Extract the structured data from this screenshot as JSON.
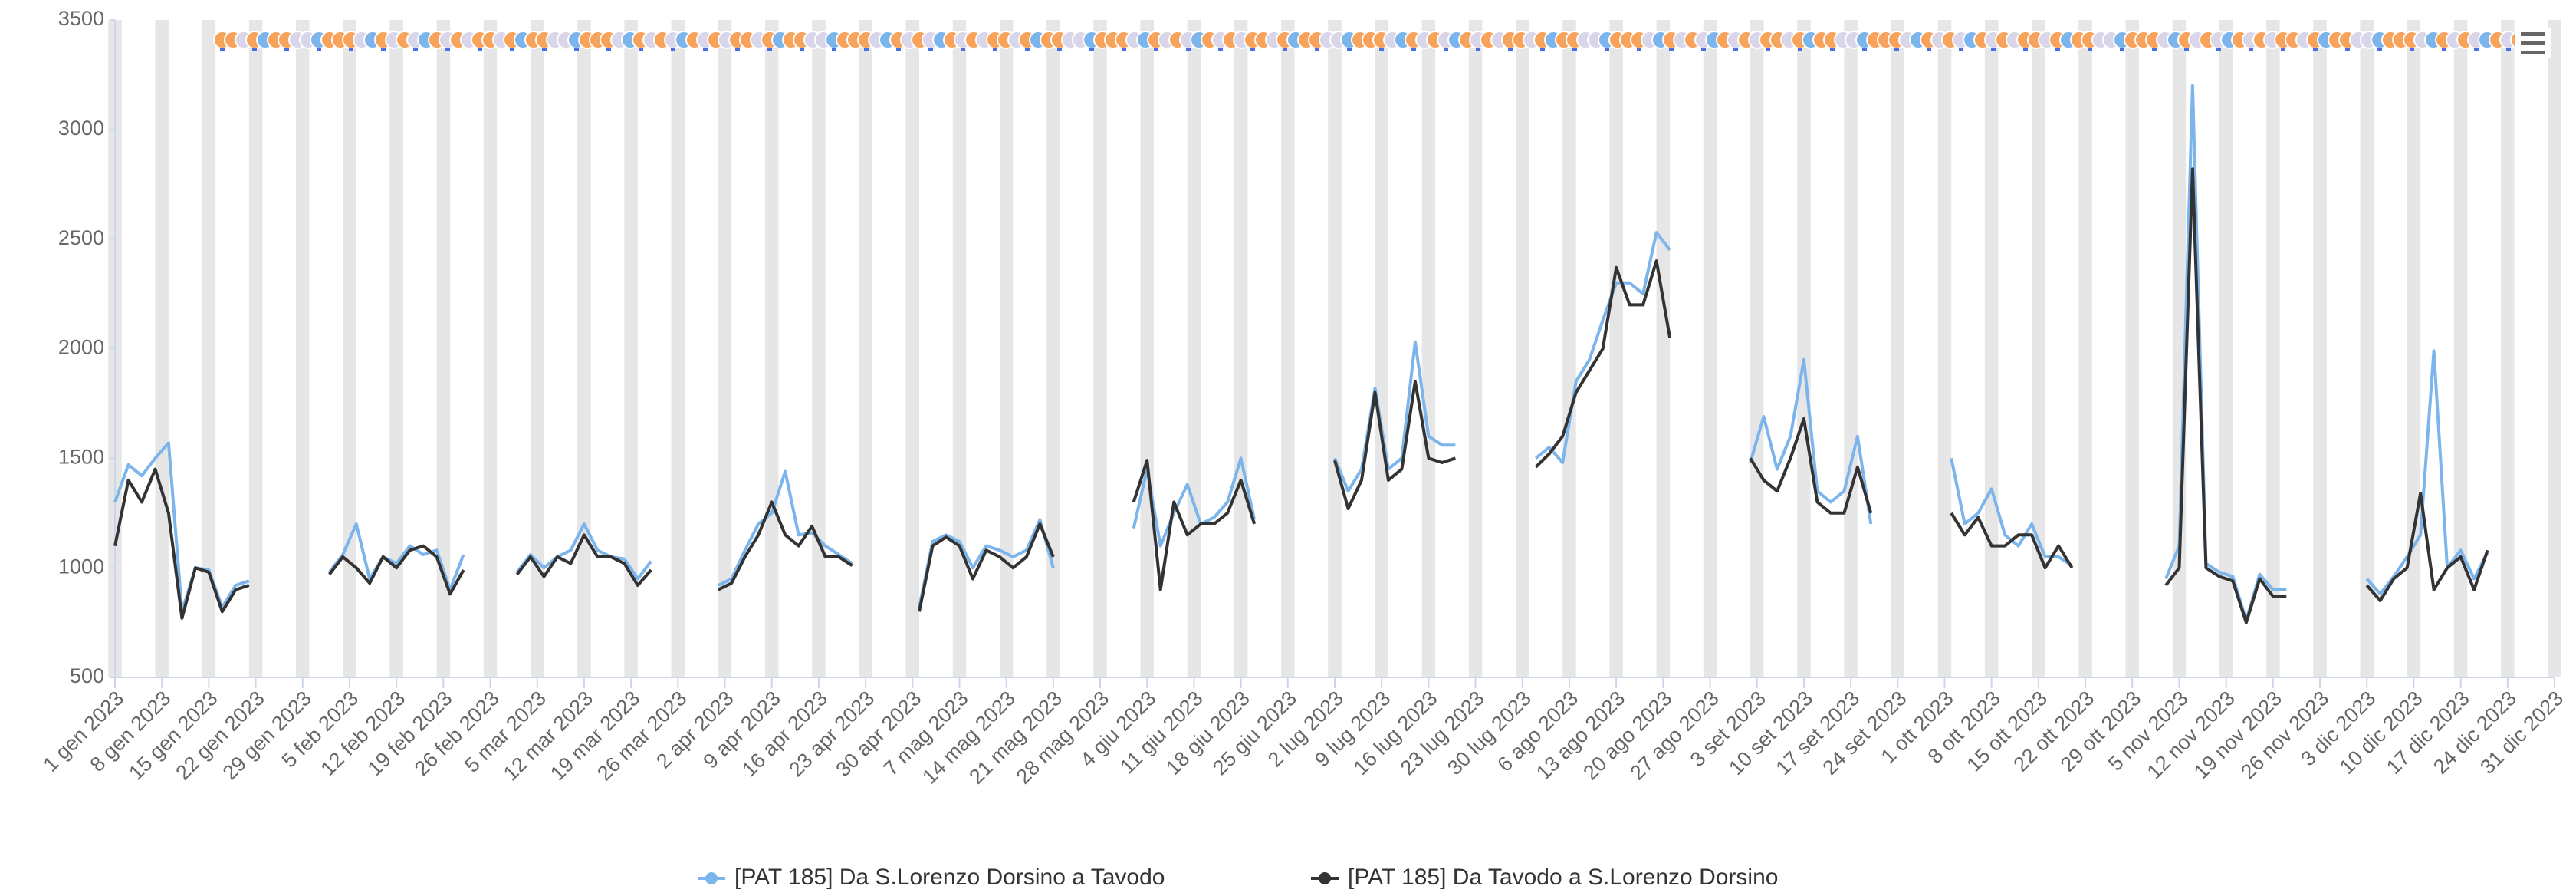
{
  "chart_data": {
    "type": "line",
    "xlim": [
      0,
      364
    ],
    "xticks": [
      {
        "value": 0,
        "label": "1 gen 2023"
      },
      {
        "value": 7,
        "label": "8 gen 2023"
      },
      {
        "value": 14,
        "label": "15 gen 2023"
      },
      {
        "value": 21,
        "label": "22 gen 2023"
      },
      {
        "value": 28,
        "label": "29 gen 2023"
      },
      {
        "value": 35,
        "label": "5 feb 2023"
      },
      {
        "value": 42,
        "label": "12 feb 2023"
      },
      {
        "value": 49,
        "label": "19 feb 2023"
      },
      {
        "value": 56,
        "label": "26 feb 2023"
      },
      {
        "value": 63,
        "label": "5 mar 2023"
      },
      {
        "value": 70,
        "label": "12 mar 2023"
      },
      {
        "value": 77,
        "label": "19 mar 2023"
      },
      {
        "value": 84,
        "label": "26 mar 2023"
      },
      {
        "value": 91,
        "label": "2 apr 2023"
      },
      {
        "value": 98,
        "label": "9 apr 2023"
      },
      {
        "value": 105,
        "label": "16 apr 2023"
      },
      {
        "value": 112,
        "label": "23 apr 2023"
      },
      {
        "value": 119,
        "label": "30 apr 2023"
      },
      {
        "value": 126,
        "label": "7 mag 2023"
      },
      {
        "value": 133,
        "label": "14 mag 2023"
      },
      {
        "value": 140,
        "label": "21 mag 2023"
      },
      {
        "value": 147,
        "label": "28 mag 2023"
      },
      {
        "value": 154,
        "label": "4 giu 2023"
      },
      {
        "value": 161,
        "label": "11 giu 2023"
      },
      {
        "value": 168,
        "label": "18 giu 2023"
      },
      {
        "value": 175,
        "label": "25 giu 2023"
      },
      {
        "value": 182,
        "label": "2 lug 2023"
      },
      {
        "value": 189,
        "label": "9 lug 2023"
      },
      {
        "value": 196,
        "label": "16 lug 2023"
      },
      {
        "value": 203,
        "label": "23 lug 2023"
      },
      {
        "value": 210,
        "label": "30 lug 2023"
      },
      {
        "value": 217,
        "label": "6 ago 2023"
      },
      {
        "value": 224,
        "label": "13 ago 2023"
      },
      {
        "value": 231,
        "label": "20 ago 2023"
      },
      {
        "value": 238,
        "label": "27 ago 2023"
      },
      {
        "value": 245,
        "label": "3 set 2023"
      },
      {
        "value": 252,
        "label": "10 set 2023"
      },
      {
        "value": 259,
        "label": "17 set 2023"
      },
      {
        "value": 266,
        "label": "24 set 2023"
      },
      {
        "value": 273,
        "label": "1 ott 2023"
      },
      {
        "value": 280,
        "label": "8 ott 2023"
      },
      {
        "value": 287,
        "label": "15 ott 2023"
      },
      {
        "value": 294,
        "label": "22 ott 2023"
      },
      {
        "value": 301,
        "label": "29 ott 2023"
      },
      {
        "value": 308,
        "label": "5 nov 2023"
      },
      {
        "value": 315,
        "label": "12 nov 2023"
      },
      {
        "value": 322,
        "label": "19 nov 2023"
      },
      {
        "value": 329,
        "label": "26 nov 2023"
      },
      {
        "value": 336,
        "label": "3 dic 2023"
      },
      {
        "value": 343,
        "label": "10 dic 2023"
      },
      {
        "value": 350,
        "label": "17 dic 2023"
      },
      {
        "value": 357,
        "label": "24 dic 2023"
      },
      {
        "value": 364,
        "label": "31 dic 2023"
      }
    ],
    "ylim": [
      500,
      3500
    ],
    "yticks": [
      500,
      1000,
      1500,
      2000,
      2500,
      3000,
      3500
    ],
    "grid": false,
    "legend": "bottom",
    "x": [
      0,
      2,
      4,
      6,
      8,
      10,
      12,
      14,
      16,
      18,
      20,
      22,
      24,
      26,
      28,
      30,
      32,
      34,
      36,
      38,
      40,
      42,
      44,
      46,
      48,
      50,
      52,
      54,
      56,
      58,
      60,
      62,
      64,
      66,
      68,
      70,
      72,
      74,
      76,
      78,
      80,
      82,
      84,
      86,
      88,
      90,
      92,
      94,
      96,
      98,
      100,
      102,
      104,
      106,
      108,
      110,
      112,
      114,
      116,
      118,
      120,
      122,
      124,
      126,
      128,
      130,
      132,
      134,
      136,
      138,
      140,
      142,
      144,
      146,
      148,
      150,
      152,
      154,
      156,
      158,
      160,
      162,
      164,
      166,
      168,
      170,
      172,
      174,
      176,
      178,
      180,
      182,
      184,
      186,
      188,
      190,
      192,
      194,
      196,
      198,
      200,
      202,
      204,
      206,
      208,
      210,
      212,
      214,
      216,
      218,
      220,
      222,
      224,
      226,
      228,
      230,
      232,
      234,
      236,
      238,
      240,
      242,
      244,
      246,
      248,
      250,
      252,
      254,
      256,
      258,
      260,
      262,
      264,
      266,
      268,
      270,
      272,
      274,
      276,
      278,
      280,
      282,
      284,
      286,
      288,
      290,
      292,
      294,
      296,
      298,
      300,
      302,
      304,
      306,
      308,
      310,
      312,
      314,
      316,
      318,
      320,
      322,
      324,
      326,
      328,
      330,
      332,
      334,
      336,
      338,
      340,
      342,
      344,
      346,
      348,
      350,
      352,
      354,
      356,
      358,
      360,
      362,
      364
    ],
    "series": [
      {
        "name": "[PAT 185] Da S.Lorenzo Dorsino a Tavodo",
        "color": "#7cb5ec",
        "values": [
          1300,
          1470,
          1420,
          1500,
          1570,
          800,
          1000,
          990,
          820,
          920,
          940,
          null,
          null,
          null,
          null,
          null,
          980,
          1060,
          1200,
          950,
          1050,
          1020,
          1100,
          1060,
          1080,
          900,
          1060,
          null,
          null,
          null,
          980,
          1060,
          1000,
          1050,
          1080,
          1200,
          1080,
          1050,
          1040,
          950,
          1030,
          null,
          null,
          null,
          null,
          920,
          950,
          1080,
          1200,
          1250,
          1440,
          1150,
          1160,
          1100,
          1060,
          1020,
          null,
          null,
          null,
          null,
          820,
          1120,
          1150,
          1120,
          1000,
          1100,
          1080,
          1050,
          1080,
          1220,
          1000,
          null,
          null,
          null,
          null,
          null,
          1180,
          1450,
          1100,
          1250,
          1380,
          1200,
          1230,
          1300,
          1500,
          1220,
          null,
          null,
          null,
          null,
          null,
          1500,
          1350,
          1450,
          1820,
          1450,
          1500,
          2030,
          1600,
          1560,
          1560,
          null,
          null,
          null,
          null,
          null,
          1500,
          1550,
          1480,
          1850,
          1950,
          2130,
          2300,
          2300,
          2250,
          2530,
          2450,
          null,
          null,
          null,
          null,
          null,
          1480,
          1690,
          1450,
          1600,
          1950,
          1350,
          1300,
          1350,
          1600,
          1200,
          null,
          null,
          null,
          null,
          null,
          1500,
          1200,
          1250,
          1360,
          1150,
          1100,
          1200,
          1050,
          1050,
          1010,
          null,
          null,
          null,
          null,
          null,
          null,
          950,
          1100,
          3200,
          1020,
          980,
          960,
          760,
          970,
          900,
          900,
          null,
          null,
          null,
          null,
          null,
          950,
          880,
          960,
          1050,
          1150,
          1990,
          1000,
          1080,
          950,
          1070,
          null,
          null,
          null,
          null,
          null
        ]
      },
      {
        "name": "[PAT 185] Da Tavodo a S.Lorenzo Dorsino",
        "color": "#333333",
        "values": [
          1100,
          1400,
          1300,
          1450,
          1250,
          770,
          1000,
          980,
          800,
          900,
          920,
          null,
          null,
          null,
          null,
          null,
          970,
          1050,
          1000,
          930,
          1050,
          1000,
          1080,
          1100,
          1050,
          880,
          990,
          null,
          null,
          null,
          970,
          1050,
          960,
          1050,
          1020,
          1150,
          1050,
          1050,
          1020,
          920,
          990,
          null,
          null,
          null,
          null,
          900,
          930,
          1050,
          1150,
          1300,
          1150,
          1100,
          1190,
          1050,
          1050,
          1010,
          null,
          null,
          null,
          null,
          800,
          1100,
          1140,
          1100,
          950,
          1080,
          1050,
          1000,
          1050,
          1200,
          1050,
          null,
          null,
          null,
          null,
          null,
          1300,
          1490,
          900,
          1300,
          1150,
          1200,
          1200,
          1250,
          1400,
          1200,
          null,
          null,
          null,
          null,
          null,
          1490,
          1270,
          1400,
          1800,
          1400,
          1450,
          1850,
          1500,
          1480,
          1500,
          null,
          null,
          null,
          null,
          null,
          1460,
          1520,
          1600,
          1800,
          1900,
          2000,
          2370,
          2200,
          2200,
          2400,
          2050,
          null,
          null,
          null,
          null,
          null,
          1500,
          1400,
          1350,
          1500,
          1680,
          1300,
          1250,
          1250,
          1460,
          1250,
          null,
          null,
          null,
          null,
          null,
          1250,
          1150,
          1230,
          1100,
          1100,
          1150,
          1150,
          1000,
          1100,
          1000,
          null,
          null,
          null,
          null,
          null,
          null,
          920,
          1000,
          2820,
          1000,
          960,
          940,
          750,
          950,
          870,
          870,
          null,
          null,
          null,
          null,
          null,
          920,
          850,
          950,
          1000,
          1340,
          900,
          1000,
          1050,
          900,
          1080,
          null,
          null,
          null,
          null,
          null
        ]
      }
    ]
  }
}
